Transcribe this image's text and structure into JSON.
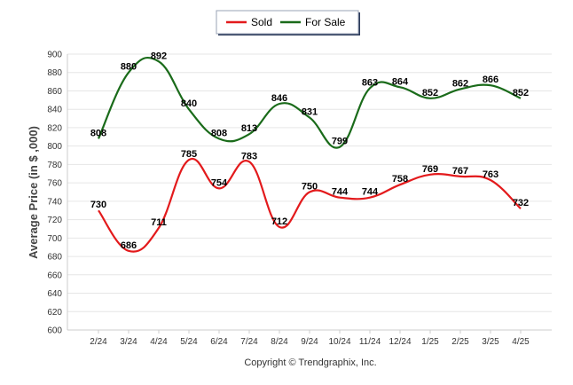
{
  "legend": {
    "sold_label": "Sold",
    "for_sale_label": "For Sale"
  },
  "copyright": "Copyright © Trendgraphix, Inc.",
  "chart_data": {
    "type": "line",
    "ylabel": "Average Price (in $ ,000)",
    "xlabel": "",
    "title": "",
    "ylim": [
      600,
      900
    ],
    "y_ticks": [
      600,
      620,
      640,
      660,
      680,
      700,
      720,
      740,
      760,
      780,
      800,
      820,
      840,
      860,
      880,
      900
    ],
    "grid": true,
    "legend_position": "top-center",
    "categories": [
      "2/24",
      "3/24",
      "4/24",
      "5/24",
      "6/24",
      "7/24",
      "8/24",
      "9/24",
      "10/24",
      "11/24",
      "12/24",
      "1/25",
      "2/25",
      "3/25",
      "4/25"
    ],
    "series": [
      {
        "name": "Sold",
        "color": "#e31a1c",
        "values": [
          730,
          686,
          711,
          785,
          754,
          783,
          712,
          750,
          744,
          744,
          758,
          769,
          767,
          763,
          732
        ]
      },
      {
        "name": "For Sale",
        "color": "#1a6b1a",
        "values": [
          808,
          880,
          892,
          840,
          808,
          813,
          846,
          831,
          799,
          863,
          864,
          852,
          862,
          866,
          852
        ]
      }
    ]
  }
}
